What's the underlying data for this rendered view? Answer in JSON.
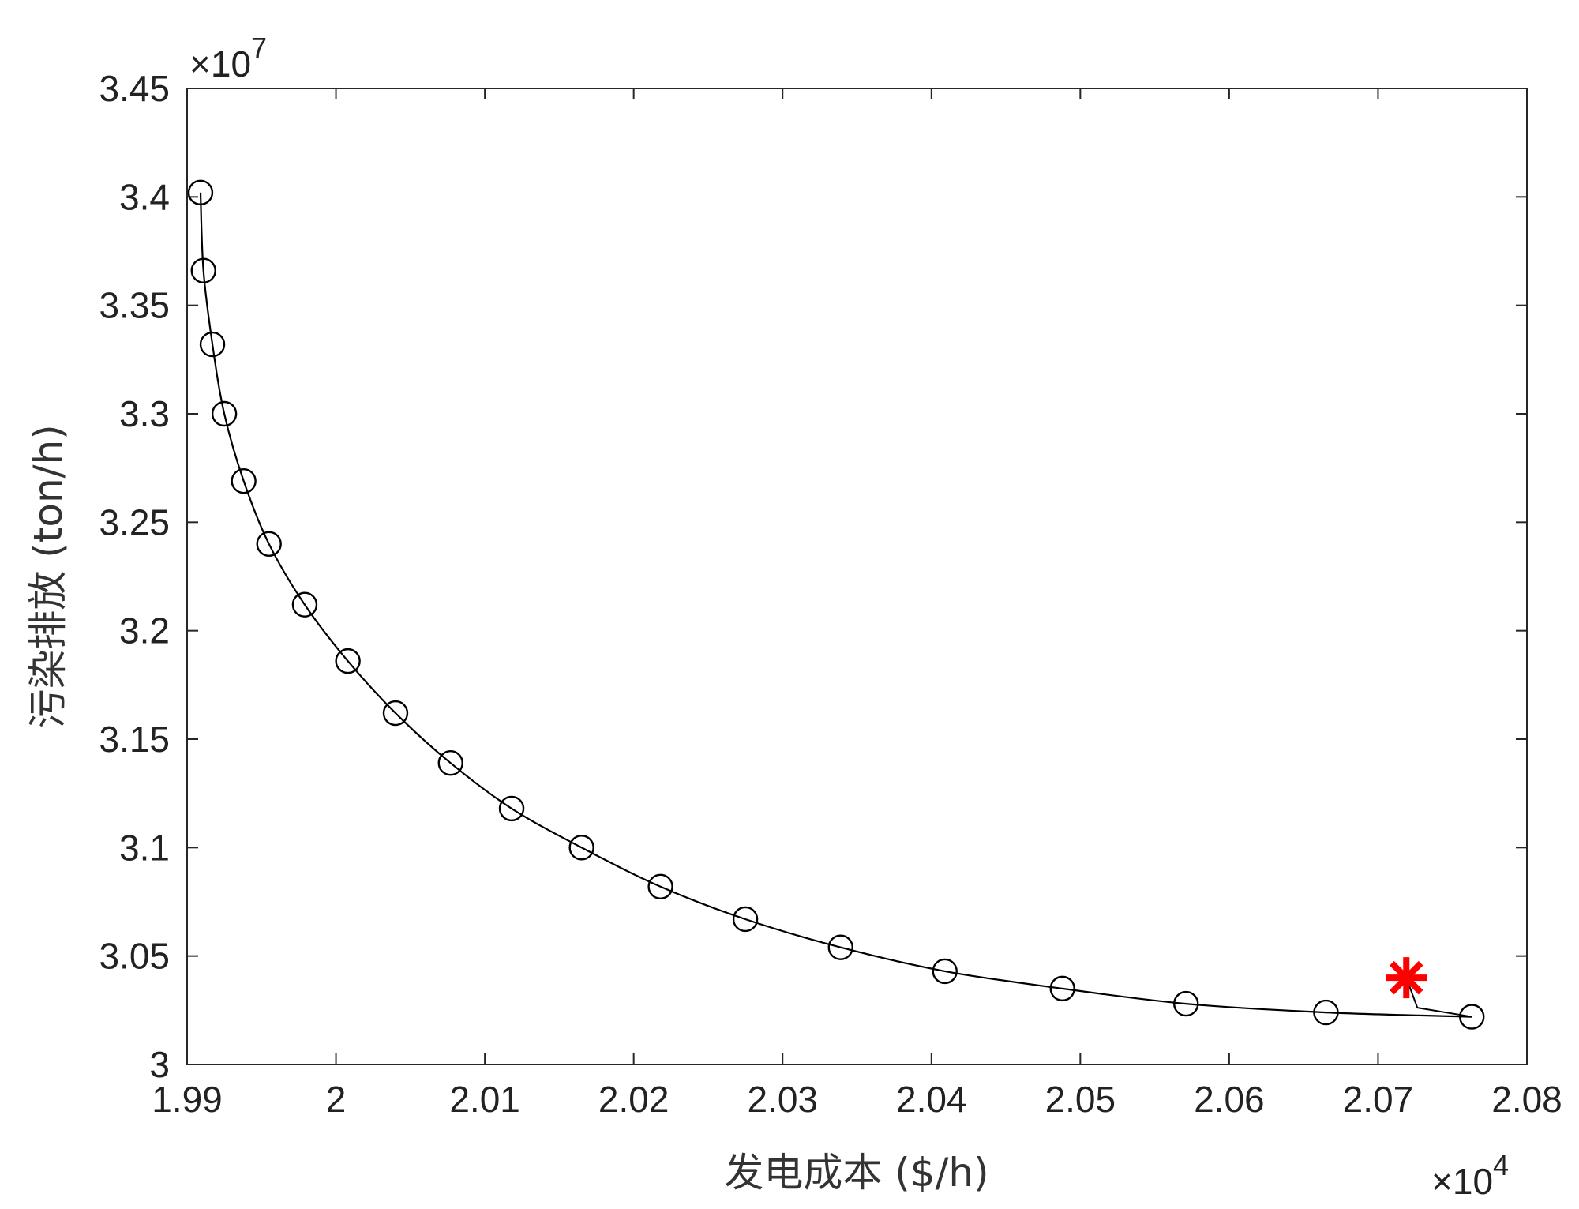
{
  "chart_data": {
    "type": "scatter",
    "xlabel": "发电成本 ($/h)",
    "ylabel": "污染排放 (ton/h)",
    "x_multiplier": {
      "prefix": "×10",
      "exponent": "4"
    },
    "y_multiplier": {
      "prefix": "×10",
      "exponent": "7"
    },
    "xlim": [
      1.99,
      2.08
    ],
    "ylim": [
      3.0,
      3.45
    ],
    "x_ticks": [
      1.99,
      2.0,
      2.01,
      2.02,
      2.03,
      2.04,
      2.05,
      2.06,
      2.07,
      2.08
    ],
    "x_tick_labels": [
      "1.99",
      "2",
      "2.01",
      "2.02",
      "2.03",
      "2.04",
      "2.05",
      "2.06",
      "2.07",
      "2.08"
    ],
    "y_ticks": [
      3.0,
      3.05,
      3.1,
      3.15,
      3.2,
      3.25,
      3.3,
      3.35,
      3.4,
      3.45
    ],
    "y_tick_labels": [
      "3",
      "3.05",
      "3.1",
      "3.15",
      "3.2",
      "3.25",
      "3.3",
      "3.35",
      "3.4",
      "3.45"
    ],
    "grid": false,
    "series": [
      {
        "marker": "circle",
        "color": "#000000",
        "x": [
          1.9909,
          1.9911,
          1.9917,
          1.9925,
          1.9938,
          1.9955,
          1.9979,
          2.0008,
          2.004,
          2.0077,
          2.0118,
          2.0165,
          2.0218,
          2.0275,
          2.0339,
          2.0409,
          2.0488,
          2.0571,
          2.0665,
          2.0763
        ],
        "y": [
          3.402,
          3.366,
          3.332,
          3.3,
          3.269,
          3.24,
          3.212,
          3.186,
          3.162,
          3.139,
          3.118,
          3.1,
          3.082,
          3.067,
          3.054,
          3.043,
          3.035,
          3.028,
          3.024,
          3.022
        ]
      },
      {
        "marker": "asterisk",
        "color": "#ff0000",
        "x": [
          2.0719
        ],
        "y": [
          3.04
        ]
      }
    ]
  }
}
